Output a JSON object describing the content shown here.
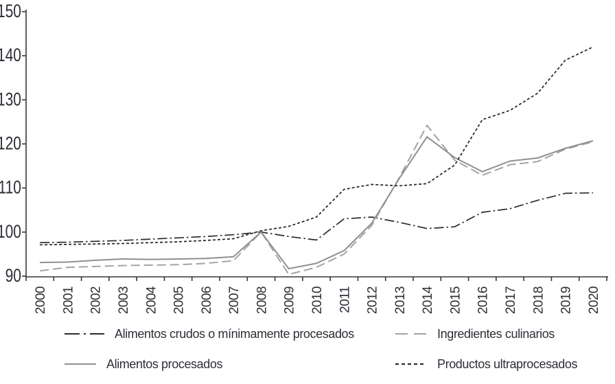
{
  "figure": {
    "background": "#ffffff",
    "axis_color": "#33333b",
    "text_color": "#2e2e36"
  },
  "chart_data": {
    "type": "line",
    "title": "",
    "xlabel": "",
    "ylabel": "",
    "grid": false,
    "legend_position": "bottom",
    "ylim": [
      90,
      150
    ],
    "yticks": [
      90,
      100,
      110,
      120,
      130,
      140,
      150
    ],
    "x": [
      2000,
      2001,
      2002,
      2003,
      2004,
      2005,
      2006,
      2007,
      2008,
      2009,
      2010,
      2011,
      2012,
      2013,
      2014,
      2015,
      2016,
      2017,
      2018,
      2019,
      2020
    ],
    "series": [
      {
        "name": "Alimentos crudos o mínimamente procesados",
        "style": "dashdot",
        "color": "#2b2b33",
        "values": [
          97.6,
          97.7,
          97.9,
          98.1,
          98.4,
          98.7,
          99.0,
          99.4,
          100.0,
          99.0,
          98.2,
          103.0,
          103.4,
          102.2,
          100.8,
          101.2,
          104.5,
          105.3,
          107.2,
          108.8,
          108.9
        ]
      },
      {
        "name": "Ingredientes culinarios",
        "style": "dashed",
        "color": "#a3a3a3",
        "values": [
          91.2,
          92.0,
          92.2,
          92.4,
          92.5,
          92.6,
          92.9,
          93.5,
          100.0,
          90.4,
          92.0,
          95.0,
          101.5,
          112.4,
          124.2,
          116.3,
          112.9,
          115.3,
          116.0,
          118.8,
          120.5
        ]
      },
      {
        "name": "Alimentos procesados",
        "style": "solid",
        "color": "#8f8f8f",
        "values": [
          93.1,
          93.2,
          93.6,
          93.9,
          93.8,
          93.9,
          94.0,
          94.4,
          100.0,
          91.7,
          92.9,
          95.8,
          102.0,
          112.2,
          121.6,
          116.9,
          113.7,
          116.1,
          116.8,
          119.0,
          120.7
        ]
      },
      {
        "name": "Productos ultraprocesados",
        "style": "dotted",
        "color": "#2b2b33",
        "values": [
          97.1,
          97.2,
          97.3,
          97.4,
          97.6,
          97.8,
          98.1,
          98.5,
          100.3,
          101.3,
          103.4,
          109.7,
          110.8,
          110.5,
          111.0,
          115.2,
          125.5,
          127.6,
          131.5,
          139.0,
          142.0
        ]
      }
    ]
  },
  "legend": {
    "items": [
      "Alimentos crudos o mínimamente procesados",
      "Ingredientes culinarios",
      "Alimentos procesados",
      "Productos ultraprocesados"
    ]
  }
}
